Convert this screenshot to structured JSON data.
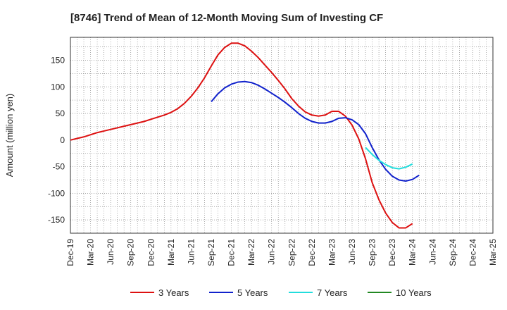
{
  "chart_data": {
    "type": "line",
    "title": "[8746]  Trend of Mean of 12-Month Moving Sum of Investing CF",
    "xlabel": "",
    "ylabel": "Amount (million yen)",
    "ylim": [
      -175,
      193
    ],
    "yticks": [
      150,
      100,
      50,
      0,
      -50,
      -100,
      -150
    ],
    "xticks": [
      "Dec-19",
      "Mar-20",
      "Jun-20",
      "Sep-20",
      "Dec-20",
      "Mar-21",
      "Jun-21",
      "Sep-21",
      "Dec-21",
      "Mar-22",
      "Jun-22",
      "Sep-22",
      "Dec-22",
      "Mar-23",
      "Jun-23",
      "Sep-23",
      "Dec-23",
      "Mar-24",
      "Jun-24",
      "Sep-24",
      "Dec-24",
      "Mar-25"
    ],
    "grid": true,
    "legend_position": "bottom",
    "series": [
      {
        "name": "3 Years",
        "color": "#dd1111",
        "start": "Dec-19",
        "values": [
          0,
          3,
          6,
          10,
          14,
          17,
          20,
          23,
          26,
          29,
          32,
          35,
          39,
          43,
          47,
          52,
          59,
          69,
          82,
          98,
          117,
          139,
          160,
          174,
          182,
          182,
          177,
          167,
          155,
          141,
          127,
          112,
          96,
          78,
          64,
          53,
          47,
          45,
          47,
          54,
          54,
          45,
          28,
          2,
          -35,
          -80,
          -112,
          -137,
          -155,
          -165,
          -165,
          -157
        ]
      },
      {
        "name": "5 Years",
        "color": "#1122cc",
        "start": "Dec-19",
        "values": [
          null,
          null,
          null,
          null,
          null,
          null,
          null,
          null,
          null,
          null,
          null,
          null,
          null,
          null,
          null,
          null,
          null,
          null,
          null,
          null,
          null,
          null,
          null,
          null,
          null,
          null,
          null,
          null,
          null,
          null,
          null,
          null,
          null,
          null,
          null,
          null,
          null,
          null,
          null,
          null,
          null,
          null,
          null,
          null,
          null,
          null,
          null,
          null,
          null,
          null,
          null,
          null
        ]
      },
      {
        "name": "7 Years",
        "color": "#22dddd",
        "start": "Dec-19",
        "values": []
      },
      {
        "name": "10 Years",
        "color": "#228822",
        "start": "Dec-19",
        "values": []
      }
    ],
    "series_overrides": {
      "5 Years": {
        "start_index": 21,
        "values": [
          72,
          87,
          98,
          105,
          109,
          110,
          108,
          103,
          96,
          88,
          80,
          71,
          61,
          50,
          41,
          35,
          32,
          32,
          35,
          41,
          42,
          38,
          29,
          12,
          -14,
          -37,
          -55,
          -68,
          -75,
          -77,
          -74,
          -66
        ]
      },
      "7 Years": {
        "start_index": 44,
        "values": [
          -14,
          -27,
          -38,
          -46,
          -52,
          -54,
          -51,
          -45
        ]
      }
    }
  }
}
